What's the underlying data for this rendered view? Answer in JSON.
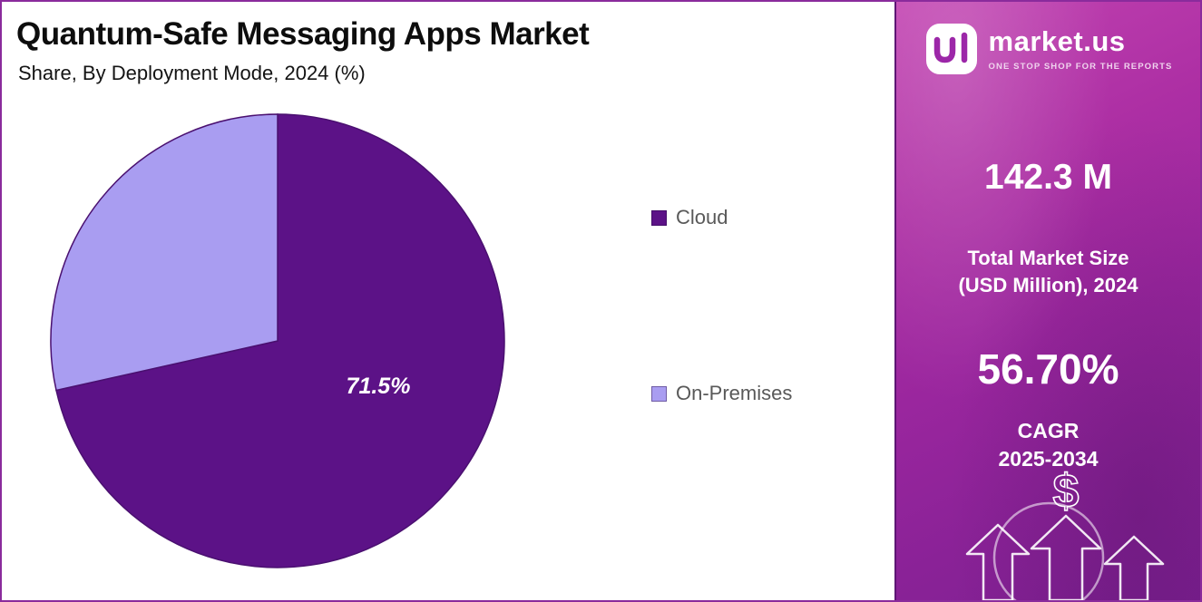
{
  "header": {
    "title": "Quantum-Safe Messaging Apps Market",
    "subtitle": "Share, By Deployment Mode, 2024 (%)"
  },
  "chart_data": {
    "type": "pie",
    "title": "Quantum-Safe Messaging Apps Market Share, By Deployment Mode, 2024 (%)",
    "categories": [
      "Cloud",
      "On-Premises"
    ],
    "values": [
      71.5,
      28.5
    ],
    "unit": "%",
    "colors": [
      "#5c1287",
      "#a99df1"
    ],
    "stroke_color": "#4a1070",
    "data_label": "71.5%",
    "labeled_slice": "Cloud",
    "legend_position": "right",
    "start_angle_deg": -90,
    "direction": "clockwise"
  },
  "legend": {
    "items": [
      {
        "label": "Cloud",
        "color": "#5c1287"
      },
      {
        "label": "On-Premises",
        "color": "#a99df1"
      }
    ]
  },
  "sidebar": {
    "brand": {
      "name": "market.us",
      "tagline": "ONE STOP SHOP FOR THE REPORTS",
      "logo_icon": "market-us-logo"
    },
    "market_size": {
      "value": "142.3 M",
      "label_line1": "Total Market Size",
      "label_line2": "(USD Million), 2024"
    },
    "cagr": {
      "value": "56.70%",
      "label_line1": "CAGR",
      "label_line2": "2025-2034"
    },
    "icons": {
      "dollar_glyph": "$",
      "names": [
        "dollar-icon",
        "growth-arrows-icon"
      ]
    },
    "accent_gradient": [
      "#c243b1",
      "#7e2092"
    ]
  }
}
